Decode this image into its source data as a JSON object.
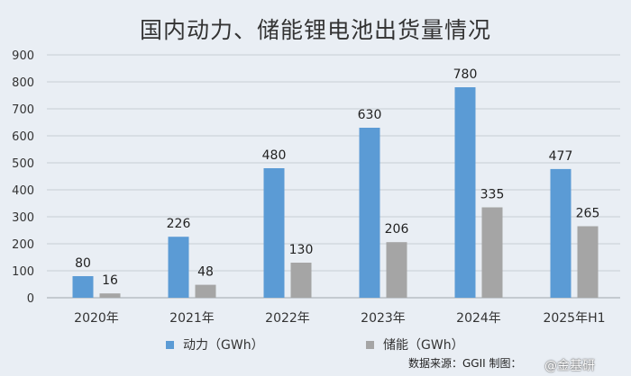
{
  "chart_data": {
    "type": "bar",
    "title": "国内动力、储能锂电池出货量情况",
    "categories": [
      "2020年",
      "2021年",
      "2022年",
      "2023年",
      "2024年",
      "2025年H1"
    ],
    "series": [
      {
        "name": "动力（GWh）",
        "values": [
          80,
          226,
          480,
          630,
          780,
          477
        ],
        "color": "#5b9bd5"
      },
      {
        "name": "储能（GWh）",
        "values": [
          16,
          48,
          130,
          206,
          335,
          265
        ],
        "color": "#a5a5a5"
      }
    ],
    "ylim": [
      0,
      900
    ],
    "yticks": [
      0,
      100,
      200,
      300,
      400,
      500,
      600,
      700,
      800,
      900
    ],
    "grid": true,
    "legend": "bottom",
    "source": "数据来源：GGII  制图：",
    "watermark": "@金基研"
  }
}
